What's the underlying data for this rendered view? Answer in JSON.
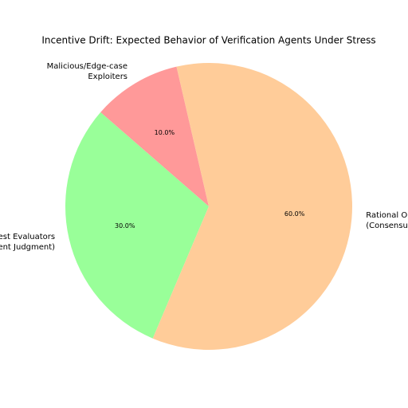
{
  "chart_data": {
    "type": "pie",
    "title": "Incentive Drift: Expected Behavior of Verification Agents Under Stress",
    "categories": [
      [
        "Malicious/Edge-case",
        "Exploiters"
      ],
      [
        "nest Evaluators",
        "ent Judgment)"
      ],
      [
        "Rational Op",
        "(Consensu"
      ]
    ],
    "values": [
      10,
      30,
      60
    ],
    "value_labels": [
      "10.0%",
      "30.0%",
      "60.0%"
    ],
    "colors": [
      "#ff9999",
      "#99ff99",
      "#ffcc99"
    ]
  }
}
